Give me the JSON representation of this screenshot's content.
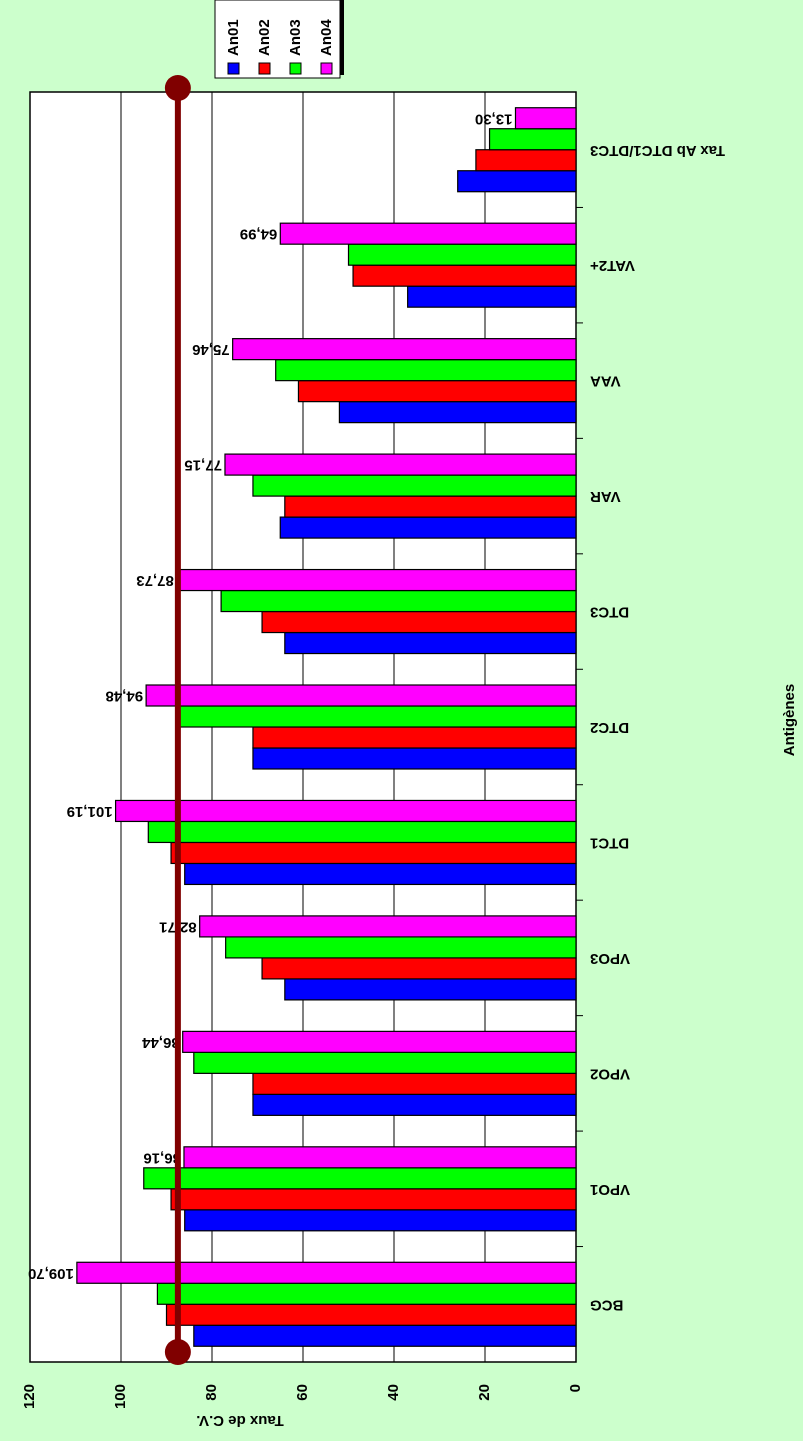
{
  "chart_data": {
    "type": "bar",
    "x_label": "Antigènes",
    "y_label": "Taux de C.V.",
    "categories": [
      "BCG",
      "VPO1",
      "VPO2",
      "VPO3",
      "DTC1",
      "DTC2",
      "DTC3",
      "VAR",
      "VAA",
      "VAT2+",
      "Tax Ab DTC1/DTC3"
    ],
    "series": [
      {
        "name": "An01",
        "color": "#0000ff",
        "values": [
          84,
          86,
          71,
          64,
          86,
          71,
          64,
          65,
          52,
          37,
          26
        ]
      },
      {
        "name": "An02",
        "color": "#ff0000",
        "values": [
          90,
          89,
          71,
          69,
          89,
          71,
          69,
          64,
          61,
          49,
          22
        ]
      },
      {
        "name": "An03",
        "color": "#00ff00",
        "values": [
          92,
          95,
          84,
          77,
          94,
          88,
          78,
          71,
          66,
          50,
          19
        ]
      },
      {
        "name": "An04",
        "color": "#ff00ff",
        "values": [
          109.7,
          86.16,
          86.44,
          82.71,
          101.19,
          94.48,
          87.73,
          77.15,
          75.46,
          64.99,
          13.3
        ],
        "value_labels": [
          "109,70",
          "86,16",
          "86,44",
          "82,71",
          "101,19",
          "94,48",
          "87,73",
          "77,15",
          "75,46",
          "64,99",
          "13,30"
        ]
      }
    ],
    "reference_line": 87.5,
    "reference_color": "#800000",
    "ylim": [
      0,
      120
    ],
    "yticks": [
      0,
      20,
      40,
      60,
      80,
      100,
      120
    ],
    "grid": true
  }
}
